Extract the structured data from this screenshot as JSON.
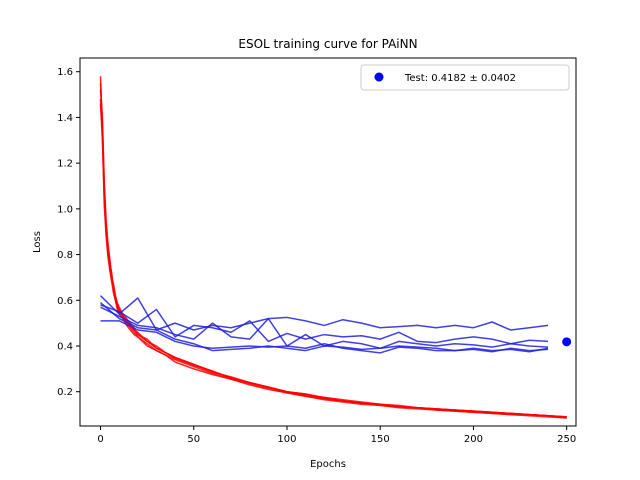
{
  "chart_data": {
    "type": "line",
    "title": "ESOL training curve for PAiNN",
    "xlabel": "Epochs",
    "ylabel": "Loss",
    "xlim": [
      -11,
      255
    ],
    "ylim": [
      0.05,
      1.66
    ],
    "xticks": [
      0,
      50,
      100,
      150,
      200,
      250
    ],
    "yticks": [
      0.2,
      0.4,
      0.6,
      0.8,
      1.0,
      1.2,
      1.4,
      1.6
    ],
    "grid": false,
    "legend_position": "top-right",
    "legend": [
      {
        "label": "Test: 0.4182 ± 0.0402",
        "color": "#0000ff",
        "marker": "circle"
      }
    ],
    "test_point": {
      "x": 250,
      "y": 0.4182
    },
    "train_color": "#ff0000",
    "val_color": "#1f1fe0",
    "train_series": [
      {
        "x": [
          0,
          1,
          2,
          3,
          4,
          5,
          6,
          7,
          8,
          9,
          10,
          12,
          14,
          16,
          18,
          20,
          25,
          30,
          35,
          40,
          50,
          60,
          70,
          80,
          90,
          100,
          110,
          120,
          130,
          140,
          150,
          160,
          170,
          180,
          190,
          200,
          210,
          220,
          230,
          240,
          250
        ],
        "y": [
          1.58,
          1.35,
          1.08,
          0.93,
          0.82,
          0.74,
          0.69,
          0.66,
          0.61,
          0.58,
          0.56,
          0.53,
          0.51,
          0.49,
          0.47,
          0.46,
          0.42,
          0.4,
          0.37,
          0.35,
          0.32,
          0.29,
          0.26,
          0.24,
          0.22,
          0.2,
          0.19,
          0.17,
          0.16,
          0.15,
          0.145,
          0.135,
          0.13,
          0.125,
          0.12,
          0.115,
          0.11,
          0.105,
          0.1,
          0.095,
          0.09
        ]
      },
      {
        "x": [
          0,
          1,
          2,
          3,
          4,
          5,
          6,
          7,
          8,
          9,
          10,
          12,
          14,
          16,
          18,
          20,
          25,
          30,
          35,
          40,
          50,
          60,
          70,
          80,
          90,
          100,
          110,
          120,
          130,
          140,
          150,
          160,
          170,
          180,
          190,
          200,
          210,
          220,
          230,
          240,
          250
        ],
        "y": [
          1.46,
          1.3,
          1.05,
          0.9,
          0.8,
          0.76,
          0.72,
          0.64,
          0.6,
          0.57,
          0.55,
          0.52,
          0.5,
          0.48,
          0.46,
          0.44,
          0.41,
          0.38,
          0.36,
          0.34,
          0.31,
          0.28,
          0.255,
          0.235,
          0.215,
          0.195,
          0.18,
          0.17,
          0.16,
          0.15,
          0.14,
          0.135,
          0.13,
          0.12,
          0.115,
          0.11,
          0.105,
          0.1,
          0.1,
          0.095,
          0.085
        ]
      },
      {
        "x": [
          0,
          1,
          2,
          3,
          4,
          5,
          6,
          7,
          8,
          9,
          10,
          12,
          14,
          16,
          18,
          20,
          25,
          30,
          35,
          40,
          50,
          60,
          70,
          80,
          90,
          100,
          110,
          120,
          130,
          140,
          150,
          160,
          170,
          180,
          190,
          200,
          210,
          220,
          230,
          240,
          250
        ],
        "y": [
          1.52,
          1.4,
          1.12,
          0.95,
          0.85,
          0.78,
          0.7,
          0.67,
          0.62,
          0.59,
          0.57,
          0.54,
          0.52,
          0.5,
          0.48,
          0.45,
          0.43,
          0.39,
          0.37,
          0.35,
          0.32,
          0.285,
          0.265,
          0.24,
          0.22,
          0.2,
          0.185,
          0.175,
          0.165,
          0.155,
          0.145,
          0.14,
          0.13,
          0.125,
          0.12,
          0.115,
          0.11,
          0.105,
          0.1,
          0.095,
          0.09
        ]
      },
      {
        "x": [
          0,
          1,
          2,
          3,
          4,
          5,
          6,
          7,
          8,
          9,
          10,
          12,
          14,
          16,
          18,
          20,
          25,
          30,
          35,
          40,
          50,
          60,
          70,
          80,
          90,
          100,
          110,
          120,
          130,
          140,
          150,
          160,
          170,
          180,
          190,
          200,
          210,
          220,
          230,
          240,
          250
        ],
        "y": [
          1.48,
          1.33,
          1.02,
          0.88,
          0.79,
          0.73,
          0.68,
          0.63,
          0.6,
          0.56,
          0.54,
          0.52,
          0.49,
          0.47,
          0.45,
          0.44,
          0.4,
          0.38,
          0.36,
          0.33,
          0.3,
          0.275,
          0.255,
          0.23,
          0.21,
          0.195,
          0.18,
          0.165,
          0.155,
          0.145,
          0.14,
          0.13,
          0.125,
          0.12,
          0.115,
          0.11,
          0.105,
          0.1,
          0.095,
          0.09,
          0.085
        ]
      },
      {
        "x": [
          0,
          1,
          2,
          3,
          4,
          5,
          6,
          7,
          8,
          9,
          10,
          12,
          14,
          16,
          18,
          20,
          25,
          30,
          35,
          40,
          50,
          60,
          70,
          80,
          90,
          100,
          110,
          120,
          130,
          140,
          150,
          160,
          170,
          180,
          190,
          200,
          210,
          220,
          230,
          240,
          250
        ],
        "y": [
          1.55,
          1.38,
          1.1,
          0.92,
          0.83,
          0.77,
          0.71,
          0.65,
          0.61,
          0.58,
          0.56,
          0.53,
          0.51,
          0.49,
          0.47,
          0.45,
          0.42,
          0.39,
          0.37,
          0.345,
          0.315,
          0.29,
          0.26,
          0.24,
          0.22,
          0.2,
          0.19,
          0.175,
          0.16,
          0.15,
          0.145,
          0.135,
          0.13,
          0.125,
          0.12,
          0.115,
          0.11,
          0.105,
          0.1,
          0.095,
          0.09
        ]
      }
    ],
    "val_series": [
      {
        "x": [
          0,
          10,
          20,
          30,
          40,
          50,
          60,
          70,
          80,
          90,
          100,
          110,
          120,
          130,
          140,
          150,
          160,
          170,
          180,
          190,
          200,
          210,
          220,
          230,
          240
        ],
        "y": [
          0.62,
          0.54,
          0.61,
          0.47,
          0.5,
          0.47,
          0.49,
          0.48,
          0.5,
          0.52,
          0.525,
          0.51,
          0.49,
          0.515,
          0.5,
          0.48,
          0.485,
          0.49,
          0.48,
          0.49,
          0.48,
          0.505,
          0.47,
          0.48,
          0.49
        ]
      },
      {
        "x": [
          0,
          10,
          20,
          30,
          40,
          50,
          60,
          70,
          80,
          90,
          100,
          110,
          120,
          130,
          140,
          150,
          160,
          170,
          180,
          190,
          200,
          210,
          220,
          230,
          240
        ],
        "y": [
          0.58,
          0.55,
          0.5,
          0.56,
          0.44,
          0.49,
          0.48,
          0.46,
          0.51,
          0.42,
          0.455,
          0.43,
          0.45,
          0.44,
          0.445,
          0.43,
          0.46,
          0.42,
          0.415,
          0.43,
          0.44,
          0.43,
          0.41,
          0.425,
          0.42
        ]
      },
      {
        "x": [
          0,
          10,
          20,
          30,
          40,
          50,
          60,
          70,
          80,
          90,
          100,
          110,
          120,
          130,
          140,
          150,
          160,
          170,
          180,
          190,
          200,
          210,
          220,
          230,
          240
        ],
        "y": [
          0.57,
          0.53,
          0.49,
          0.48,
          0.45,
          0.43,
          0.5,
          0.44,
          0.43,
          0.52,
          0.4,
          0.45,
          0.4,
          0.42,
          0.41,
          0.39,
          0.42,
          0.41,
          0.4,
          0.41,
          0.405,
          0.395,
          0.41,
          0.4,
          0.395
        ]
      },
      {
        "x": [
          0,
          10,
          20,
          30,
          40,
          50,
          60,
          70,
          80,
          90,
          100,
          110,
          120,
          130,
          140,
          150,
          160,
          170,
          180,
          190,
          200,
          210,
          220,
          230,
          240
        ],
        "y": [
          0.51,
          0.51,
          0.47,
          0.46,
          0.42,
          0.4,
          0.39,
          0.395,
          0.4,
          0.395,
          0.4,
          0.39,
          0.41,
          0.39,
          0.38,
          0.37,
          0.395,
          0.39,
          0.38,
          0.38,
          0.385,
          0.375,
          0.39,
          0.38,
          0.385
        ]
      },
      {
        "x": [
          0,
          10,
          20,
          30,
          40,
          50,
          60,
          70,
          80,
          90,
          100,
          110,
          120,
          130,
          140,
          150,
          160,
          170,
          180,
          190,
          200,
          210,
          220,
          230,
          240
        ],
        "y": [
          0.59,
          0.52,
          0.48,
          0.47,
          0.43,
          0.41,
          0.38,
          0.385,
          0.39,
          0.4,
          0.39,
          0.38,
          0.4,
          0.395,
          0.385,
          0.39,
          0.4,
          0.395,
          0.39,
          0.38,
          0.39,
          0.38,
          0.385,
          0.375,
          0.39
        ]
      }
    ]
  }
}
